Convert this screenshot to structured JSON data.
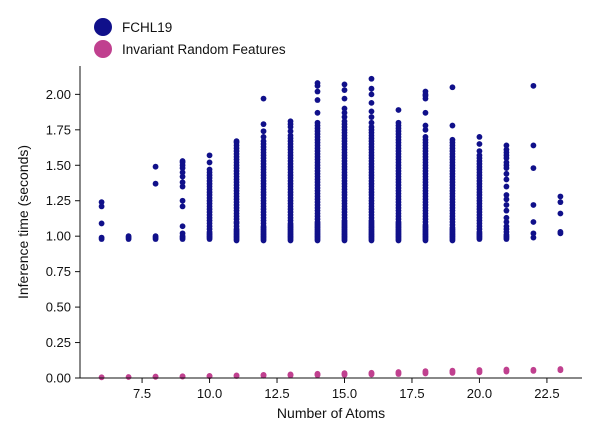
{
  "chart_data": {
    "type": "scatter",
    "title": "",
    "xlabel": "Number of Atoms",
    "ylabel": "Inference time (seconds)",
    "xlim": [
      5.2,
      23.8
    ],
    "ylim": [
      0.0,
      2.2
    ],
    "xticks": [
      7.5,
      10.0,
      12.5,
      15.0,
      17.5,
      20.0,
      22.5
    ],
    "xtick_labels": [
      "7.5",
      "10.0",
      "12.5",
      "15.0",
      "17.5",
      "20.0",
      "22.5"
    ],
    "yticks": [
      0.0,
      0.25,
      0.5,
      0.75,
      1.0,
      1.25,
      1.5,
      1.75,
      2.0
    ],
    "ytick_labels": [
      "0.00",
      "0.25",
      "0.50",
      "0.75",
      "1.00",
      "1.25",
      "1.50",
      "1.75",
      "2.00"
    ],
    "grid": false,
    "legend_position": "top-left",
    "series": [
      {
        "name": "FCHL19",
        "color": "#10108a",
        "points": [
          {
            "x": 6,
            "y": [
              0.98,
              0.99,
              1.09,
              1.21,
              1.24
            ]
          },
          {
            "x": 7,
            "y": [
              0.98,
              0.99,
              1.0
            ]
          },
          {
            "x": 8,
            "y": [
              0.98,
              0.99,
              1.0,
              1.37,
              1.49
            ]
          },
          {
            "x": 9,
            "y": [
              0.98,
              0.99,
              1.0,
              1.02,
              1.07,
              1.21,
              1.25,
              1.35,
              1.38,
              1.42,
              1.45,
              1.48,
              1.5,
              1.52,
              1.53
            ]
          },
          {
            "x": 10,
            "y": [
              0.98,
              0.99,
              1.0,
              1.01,
              1.02,
              1.03,
              1.05,
              1.07,
              1.09,
              1.11,
              1.13,
              1.15,
              1.17,
              1.19,
              1.21,
              1.23,
              1.25,
              1.27,
              1.29,
              1.31,
              1.33,
              1.35,
              1.37,
              1.39,
              1.41,
              1.43,
              1.45,
              1.47,
              1.52,
              1.57
            ]
          },
          {
            "x": 11,
            "y": [
              0.97,
              0.98,
              0.99,
              1.0,
              1.01,
              1.02,
              1.03,
              1.04,
              1.05,
              1.07,
              1.09,
              1.1,
              1.12,
              1.14,
              1.16,
              1.18,
              1.2,
              1.22,
              1.24,
              1.26,
              1.28,
              1.3,
              1.32,
              1.34,
              1.36,
              1.38,
              1.4,
              1.42,
              1.44,
              1.46,
              1.48,
              1.5,
              1.52,
              1.54,
              1.56,
              1.58,
              1.6,
              1.62,
              1.64,
              1.66,
              1.67
            ]
          },
          {
            "x": 12,
            "y": [
              0.97,
              0.98,
              0.99,
              1.0,
              1.01,
              1.02,
              1.03,
              1.04,
              1.05,
              1.06,
              1.07,
              1.09,
              1.11,
              1.13,
              1.15,
              1.17,
              1.19,
              1.21,
              1.23,
              1.25,
              1.27,
              1.29,
              1.31,
              1.33,
              1.35,
              1.37,
              1.39,
              1.41,
              1.43,
              1.45,
              1.47,
              1.49,
              1.51,
              1.53,
              1.55,
              1.57,
              1.59,
              1.61,
              1.63,
              1.65,
              1.67,
              1.7,
              1.74,
              1.79,
              1.97
            ]
          },
          {
            "x": 13,
            "y": [
              0.97,
              0.98,
              0.99,
              1.0,
              1.01,
              1.02,
              1.03,
              1.04,
              1.05,
              1.06,
              1.07,
              1.08,
              1.09,
              1.11,
              1.13,
              1.15,
              1.17,
              1.19,
              1.21,
              1.23,
              1.25,
              1.27,
              1.29,
              1.31,
              1.33,
              1.35,
              1.37,
              1.39,
              1.41,
              1.43,
              1.45,
              1.47,
              1.49,
              1.51,
              1.53,
              1.55,
              1.57,
              1.59,
              1.61,
              1.63,
              1.65,
              1.67,
              1.69,
              1.71,
              1.74,
              1.77,
              1.79,
              1.81
            ]
          },
          {
            "x": 14,
            "y": [
              0.97,
              0.98,
              0.99,
              1.0,
              1.01,
              1.02,
              1.03,
              1.04,
              1.05,
              1.06,
              1.07,
              1.08,
              1.09,
              1.1,
              1.12,
              1.14,
              1.16,
              1.18,
              1.2,
              1.22,
              1.24,
              1.26,
              1.28,
              1.3,
              1.32,
              1.34,
              1.36,
              1.38,
              1.4,
              1.42,
              1.44,
              1.46,
              1.48,
              1.5,
              1.52,
              1.54,
              1.56,
              1.58,
              1.6,
              1.62,
              1.64,
              1.66,
              1.68,
              1.7,
              1.72,
              1.74,
              1.76,
              1.78,
              1.8,
              1.87,
              1.96,
              2.02,
              2.06,
              2.08
            ]
          },
          {
            "x": 15,
            "y": [
              0.97,
              0.98,
              0.99,
              1.0,
              1.01,
              1.02,
              1.03,
              1.04,
              1.05,
              1.06,
              1.07,
              1.08,
              1.09,
              1.1,
              1.11,
              1.13,
              1.15,
              1.17,
              1.19,
              1.21,
              1.23,
              1.25,
              1.27,
              1.29,
              1.31,
              1.33,
              1.35,
              1.37,
              1.39,
              1.41,
              1.43,
              1.45,
              1.47,
              1.49,
              1.51,
              1.53,
              1.55,
              1.57,
              1.59,
              1.61,
              1.63,
              1.65,
              1.67,
              1.69,
              1.71,
              1.73,
              1.75,
              1.77,
              1.79,
              1.81,
              1.84,
              1.87,
              1.9,
              1.97,
              2.03,
              2.07
            ]
          },
          {
            "x": 16,
            "y": [
              0.97,
              0.98,
              0.99,
              1.0,
              1.01,
              1.02,
              1.03,
              1.04,
              1.05,
              1.06,
              1.07,
              1.08,
              1.09,
              1.1,
              1.11,
              1.13,
              1.15,
              1.17,
              1.19,
              1.21,
              1.23,
              1.25,
              1.27,
              1.29,
              1.31,
              1.33,
              1.35,
              1.37,
              1.39,
              1.41,
              1.43,
              1.45,
              1.47,
              1.49,
              1.51,
              1.53,
              1.55,
              1.57,
              1.59,
              1.61,
              1.63,
              1.65,
              1.67,
              1.69,
              1.71,
              1.73,
              1.75,
              1.77,
              1.8,
              1.84,
              1.88,
              1.94,
              2.0,
              2.04,
              2.11
            ]
          },
          {
            "x": 17,
            "y": [
              0.97,
              0.98,
              0.99,
              1.0,
              1.01,
              1.02,
              1.03,
              1.04,
              1.05,
              1.06,
              1.07,
              1.08,
              1.09,
              1.1,
              1.12,
              1.14,
              1.16,
              1.18,
              1.2,
              1.22,
              1.24,
              1.26,
              1.28,
              1.3,
              1.32,
              1.34,
              1.36,
              1.38,
              1.4,
              1.42,
              1.44,
              1.46,
              1.48,
              1.5,
              1.52,
              1.54,
              1.56,
              1.58,
              1.6,
              1.62,
              1.64,
              1.66,
              1.68,
              1.7,
              1.72,
              1.74,
              1.76,
              1.78,
              1.8,
              1.89
            ]
          },
          {
            "x": 18,
            "y": [
              0.97,
              0.98,
              0.99,
              1.0,
              1.01,
              1.02,
              1.03,
              1.04,
              1.05,
              1.06,
              1.07,
              1.08,
              1.1,
              1.12,
              1.14,
              1.16,
              1.18,
              1.2,
              1.22,
              1.24,
              1.26,
              1.28,
              1.3,
              1.32,
              1.34,
              1.36,
              1.38,
              1.4,
              1.42,
              1.44,
              1.46,
              1.48,
              1.5,
              1.52,
              1.54,
              1.56,
              1.58,
              1.6,
              1.62,
              1.64,
              1.66,
              1.68,
              1.7,
              1.75,
              1.78,
              1.87,
              1.97,
              1.99,
              2.0,
              2.02
            ]
          },
          {
            "x": 19,
            "y": [
              0.97,
              0.98,
              0.99,
              1.0,
              1.01,
              1.02,
              1.03,
              1.04,
              1.05,
              1.06,
              1.08,
              1.1,
              1.12,
              1.14,
              1.16,
              1.18,
              1.2,
              1.22,
              1.24,
              1.26,
              1.28,
              1.3,
              1.32,
              1.34,
              1.36,
              1.38,
              1.4,
              1.42,
              1.44,
              1.46,
              1.48,
              1.5,
              1.52,
              1.54,
              1.56,
              1.58,
              1.6,
              1.62,
              1.64,
              1.66,
              1.68,
              1.78,
              2.05
            ]
          },
          {
            "x": 20,
            "y": [
              0.98,
              0.99,
              1.0,
              1.01,
              1.02,
              1.03,
              1.05,
              1.07,
              1.09,
              1.11,
              1.13,
              1.15,
              1.17,
              1.19,
              1.21,
              1.23,
              1.25,
              1.27,
              1.29,
              1.31,
              1.33,
              1.35,
              1.37,
              1.39,
              1.41,
              1.43,
              1.45,
              1.47,
              1.49,
              1.51,
              1.53,
              1.55,
              1.57,
              1.6,
              1.65,
              1.7
            ]
          },
          {
            "x": 21,
            "y": [
              0.98,
              0.99,
              1.0,
              1.01,
              1.03,
              1.05,
              1.07,
              1.1,
              1.13,
              1.18,
              1.22,
              1.26,
              1.29,
              1.35,
              1.4,
              1.44,
              1.48,
              1.5,
              1.52,
              1.55,
              1.57,
              1.59,
              1.61,
              1.64
            ]
          },
          {
            "x": 22,
            "y": [
              0.99,
              1.02,
              1.1,
              1.22,
              1.48,
              1.64,
              2.06
            ]
          },
          {
            "x": 23,
            "y": [
              1.02,
              1.03,
              1.16,
              1.24,
              1.28
            ]
          }
        ]
      },
      {
        "name": "Invariant Random Features",
        "color": "#c0408f",
        "points": [
          {
            "x": 6,
            "y": [
              0.005
            ]
          },
          {
            "x": 7,
            "y": [
              0.007
            ]
          },
          {
            "x": 8,
            "y": [
              0.008,
              0.01
            ]
          },
          {
            "x": 9,
            "y": [
              0.01,
              0.012
            ]
          },
          {
            "x": 10,
            "y": [
              0.012,
              0.015
            ]
          },
          {
            "x": 11,
            "y": [
              0.014,
              0.018
            ]
          },
          {
            "x": 12,
            "y": [
              0.016,
              0.02,
              0.022
            ]
          },
          {
            "x": 13,
            "y": [
              0.018,
              0.022,
              0.025
            ]
          },
          {
            "x": 14,
            "y": [
              0.02,
              0.025,
              0.03
            ]
          },
          {
            "x": 15,
            "y": [
              0.022,
              0.028,
              0.034
            ]
          },
          {
            "x": 16,
            "y": [
              0.025,
              0.031,
              0.037
            ]
          },
          {
            "x": 17,
            "y": [
              0.028,
              0.035,
              0.042
            ]
          },
          {
            "x": 18,
            "y": [
              0.032,
              0.04,
              0.048
            ]
          },
          {
            "x": 19,
            "y": [
              0.036,
              0.044,
              0.052
            ]
          },
          {
            "x": 20,
            "y": [
              0.04,
              0.048,
              0.056
            ]
          },
          {
            "x": 21,
            "y": [
              0.045,
              0.053,
              0.06
            ]
          },
          {
            "x": 22,
            "y": [
              0.05,
              0.058
            ]
          },
          {
            "x": 23,
            "y": [
              0.055,
              0.063
            ]
          }
        ]
      }
    ]
  }
}
